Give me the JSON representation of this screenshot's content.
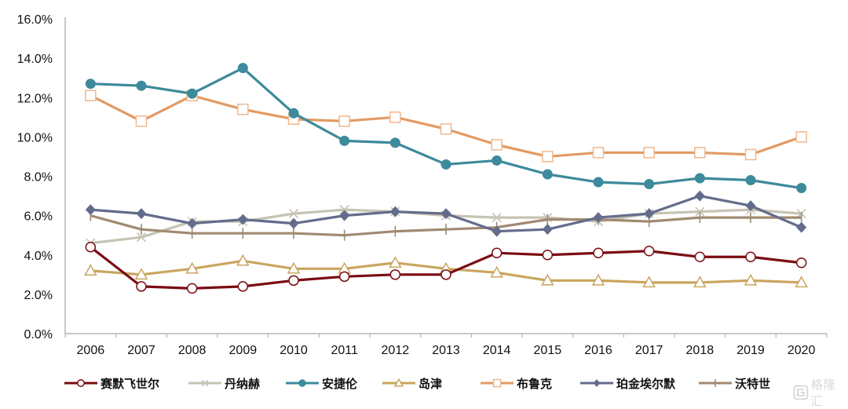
{
  "chart_data": {
    "type": "line",
    "title": "",
    "xlabel": "",
    "ylabel": "",
    "ylim": [
      0,
      16
    ],
    "y_ticks": [
      "0.0%",
      "2.0%",
      "4.0%",
      "6.0%",
      "8.0%",
      "10.0%",
      "12.0%",
      "14.0%",
      "16.0%"
    ],
    "y_tick_values": [
      0,
      2,
      4,
      6,
      8,
      10,
      12,
      14,
      16
    ],
    "grid": false,
    "legend_position": "bottom",
    "categories": [
      "2006",
      "2007",
      "2008",
      "2009",
      "2010",
      "2011",
      "2012",
      "2013",
      "2014",
      "2015",
      "2016",
      "2017",
      "2018",
      "2019",
      "2020"
    ],
    "series": [
      {
        "name": "赛默飞世尔",
        "color": "#7a0c12",
        "marker": "open-circle",
        "values": [
          4.4,
          2.4,
          2.3,
          2.4,
          2.7,
          2.9,
          3.0,
          3.0,
          4.1,
          4.0,
          4.1,
          4.2,
          3.9,
          3.9,
          3.6
        ]
      },
      {
        "name": "丹纳赫",
        "color": "#c6c3b3",
        "marker": "x",
        "values": [
          4.6,
          4.9,
          5.7,
          5.7,
          6.1,
          6.3,
          6.2,
          6.0,
          5.9,
          5.9,
          5.7,
          6.1,
          6.2,
          6.3,
          6.1
        ]
      },
      {
        "name": "安捷伦",
        "color": "#3d8a9c",
        "marker": "filled-circle",
        "values": [
          12.7,
          12.6,
          12.2,
          13.5,
          11.2,
          9.8,
          9.7,
          8.6,
          8.8,
          8.1,
          7.7,
          7.6,
          7.9,
          7.8,
          7.4
        ]
      },
      {
        "name": "岛津",
        "color": "#c9a55e",
        "marker": "open-triangle",
        "values": [
          3.2,
          3.0,
          3.3,
          3.7,
          3.3,
          3.3,
          3.6,
          3.3,
          3.1,
          2.7,
          2.7,
          2.6,
          2.6,
          2.7,
          2.6
        ]
      },
      {
        "name": "布鲁克",
        "color": "#e39a62",
        "marker": "open-square",
        "values": [
          12.1,
          10.8,
          12.1,
          11.4,
          10.9,
          10.8,
          11.0,
          10.4,
          9.6,
          9.0,
          9.2,
          9.2,
          9.2,
          9.1,
          10.0
        ]
      },
      {
        "name": "珀金埃尔默",
        "color": "#646c8c",
        "marker": "diamond",
        "values": [
          6.3,
          6.1,
          5.6,
          5.8,
          5.6,
          6.0,
          6.2,
          6.1,
          5.2,
          5.3,
          5.9,
          6.1,
          7.0,
          6.5,
          5.4
        ]
      },
      {
        "name": "沃特世",
        "color": "#a08a72",
        "marker": "plus",
        "values": [
          6.0,
          5.3,
          5.1,
          5.1,
          5.1,
          5.0,
          5.2,
          5.3,
          5.4,
          5.8,
          5.8,
          5.7,
          5.9,
          5.9,
          5.9
        ]
      }
    ]
  },
  "watermark": {
    "text": "格隆汇"
  }
}
